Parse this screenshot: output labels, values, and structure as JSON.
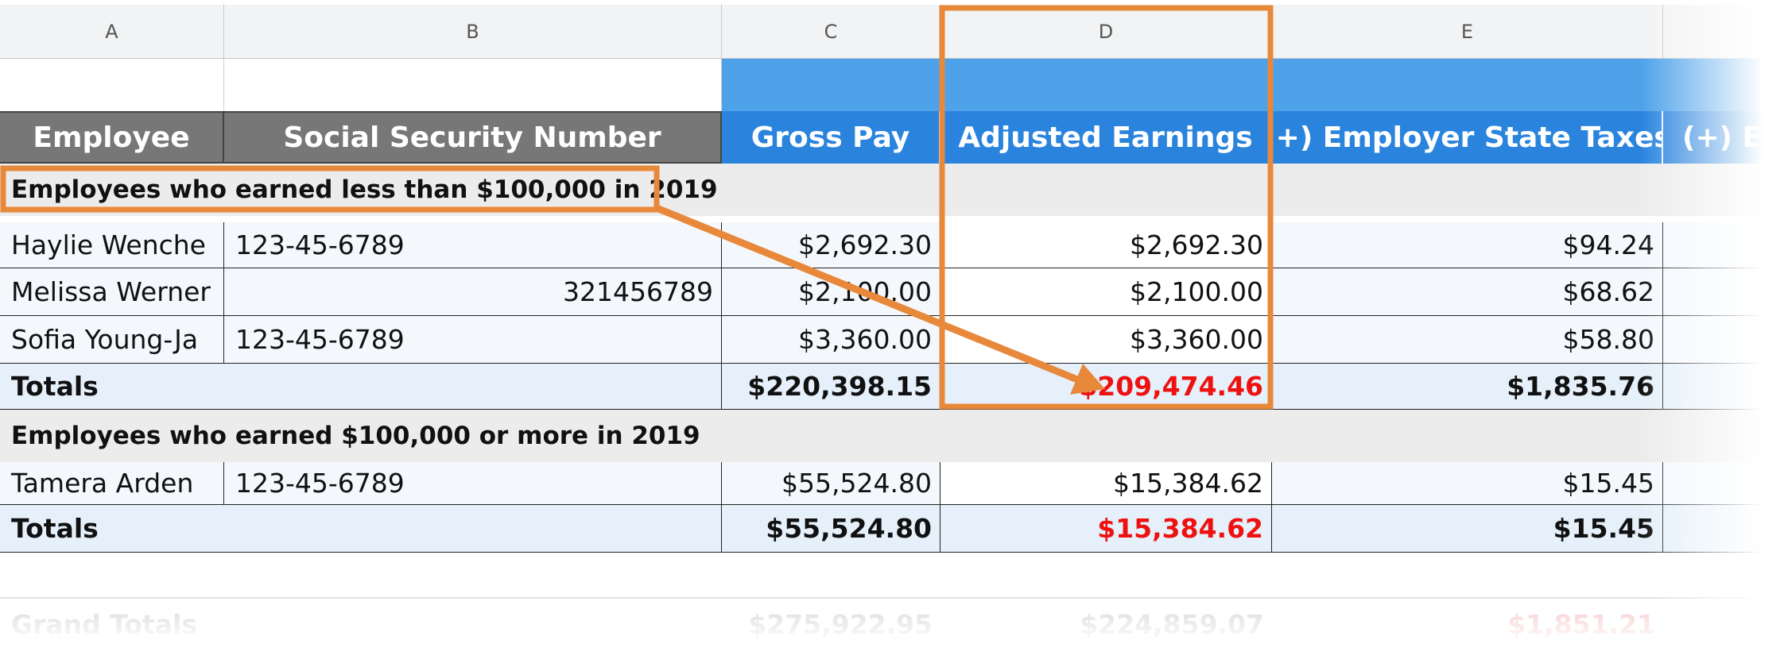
{
  "columns": [
    "A",
    "B",
    "C",
    "D",
    "E"
  ],
  "headers": {
    "employee": "Employee",
    "ssn": "Social Security Number",
    "gross": "Gross Pay",
    "adjusted": "Adjusted Earnings",
    "state_taxes": "(+) Employer State Taxes",
    "partial_next": "(+) Em"
  },
  "section1": {
    "title": "Employees who earned less than $100,000 in 2019",
    "rows": [
      {
        "name": "Haylie Wenche",
        "ssn": "123-45-6789",
        "gross": "$2,692.30",
        "adjusted": "$2,692.30",
        "tax": "$94.24"
      },
      {
        "name": "Melissa Werner",
        "ssn": "321456789",
        "gross": "$2,100.00",
        "adjusted": "$2,100.00",
        "tax": "$68.62"
      },
      {
        "name": "Sofia Young-Ja",
        "ssn": "123-45-6789",
        "gross": "$3,360.00",
        "adjusted": "$3,360.00",
        "tax": "$58.80"
      }
    ],
    "totals": {
      "label": "Totals",
      "gross": "$220,398.15",
      "adjusted": "$209,474.46",
      "tax": "$1,835.76"
    }
  },
  "section2": {
    "title": "Employees who earned $100,000 or more in 2019",
    "rows": [
      {
        "name": "Tamera Arden",
        "ssn": "123-45-6789",
        "gross": "$55,524.80",
        "adjusted": "$15,384.62",
        "tax": "$15.45"
      }
    ],
    "totals": {
      "label": "Totals",
      "gross": "$55,524.80",
      "adjusted": "$15,384.62",
      "tax": "$15.45"
    }
  },
  "grand": {
    "label": "Grand Totals",
    "gross": "$275,922.95",
    "adjusted": "$224,859.07",
    "tax": "$1,851.21"
  },
  "colors": {
    "highlight": "#e8883a",
    "header_blue": "#2a84de",
    "red_value": "#ee1111"
  }
}
